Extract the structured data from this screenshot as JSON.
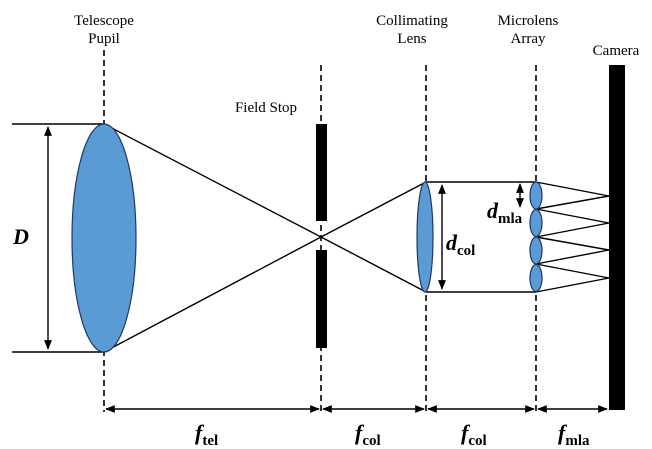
{
  "labels": {
    "telescope_pupil_line1": "Telescope",
    "telescope_pupil_line2": "Pupil",
    "field_stop": "Field Stop",
    "collimating_lens_line1": "Collimating",
    "collimating_lens_line2": "Lens",
    "microlens_array_line1": "Microlens",
    "microlens_array_line2": "Array",
    "camera": "Camera"
  },
  "symbols": {
    "D": "D",
    "d_col_main": "d",
    "d_col_sub": "col",
    "d_mla_main": "d",
    "d_mla_sub": "mla",
    "f_tel_main": "f",
    "f_tel_sub": "tel",
    "f_col1_main": "f",
    "f_col1_sub": "col",
    "f_col2_main": "f",
    "f_col2_sub": "col",
    "f_mla_main": "f",
    "f_mla_sub": "mla"
  },
  "colors": {
    "lens_fill": "#5b9bd5",
    "lens_stroke": "#1f3864",
    "line": "#000000"
  }
}
